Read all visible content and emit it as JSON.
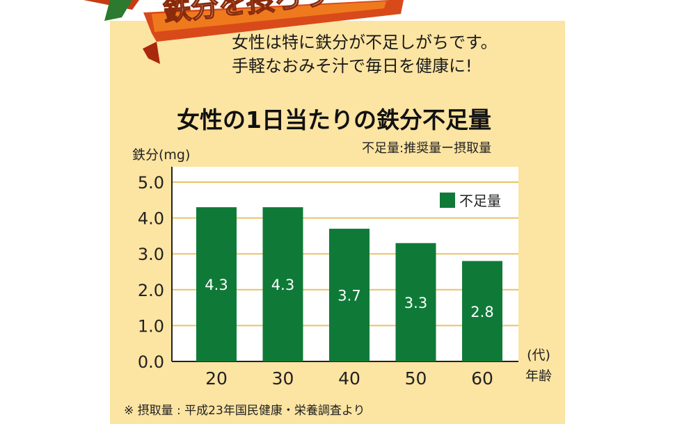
{
  "banner": {
    "title": "鉄分を摂ろう"
  },
  "intro": {
    "line1": "女性は特に鉄分が不足しがちです。",
    "line2": "手軽なおみそ汁で毎日を健康に!"
  },
  "colors": {
    "panel": "#fce4a2",
    "bar": "#0f7a38",
    "grid": "#e9c267",
    "banner_red": "#d94a1a",
    "banner_orange": "#ef7a1e"
  },
  "chart_data": {
    "type": "bar",
    "title": "女性の1日当たりの鉄分不足量",
    "subtitle": "不足量:推奨量ー摂取量",
    "ylabel": "鉄分(mg)",
    "xlabel_unit": "(代)",
    "xlabel": "年齢",
    "ylim": [
      0,
      5
    ],
    "yticks": [
      "0.0",
      "1.0",
      "2.0",
      "3.0",
      "4.0",
      "5.0"
    ],
    "categories": [
      "20",
      "30",
      "40",
      "50",
      "60"
    ],
    "series": [
      {
        "name": "不足量",
        "values": [
          4.3,
          4.3,
          3.7,
          3.3,
          2.8
        ]
      }
    ],
    "data_labels": [
      "4.3",
      "4.3",
      "3.7",
      "3.3",
      "2.8"
    ],
    "grid": true,
    "legend": "top-right"
  },
  "footnote": "※ 摂取量 : 平成23年国民健康・栄養調査より"
}
